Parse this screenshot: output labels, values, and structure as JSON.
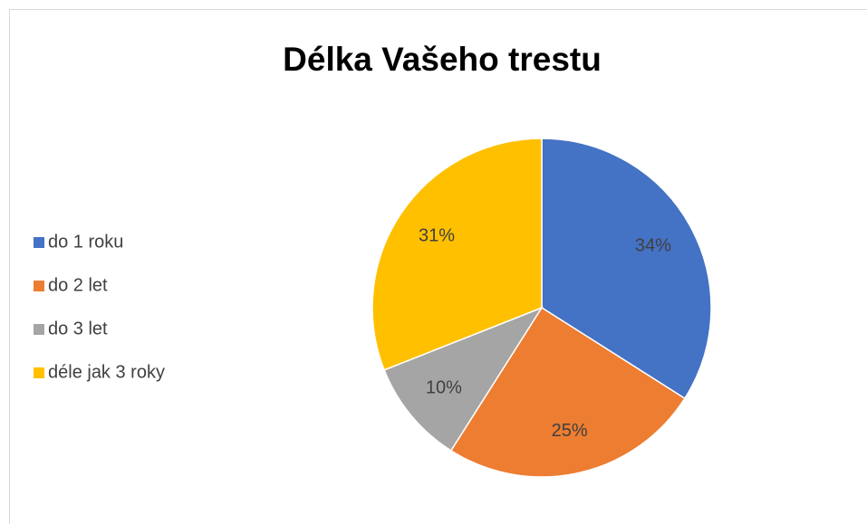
{
  "chart_data": {
    "type": "pie",
    "title": "Délka Vašeho trestu",
    "categories": [
      "do 1 roku",
      "do 2 let",
      "do 3 let",
      "déle jak 3 roky"
    ],
    "values": [
      34,
      25,
      10,
      31
    ],
    "value_labels": [
      "34%",
      "25%",
      "10%",
      "31%"
    ],
    "colors": [
      "#4472c4",
      "#ed7d31",
      "#a5a5a5",
      "#ffc000"
    ],
    "legend": "left"
  }
}
